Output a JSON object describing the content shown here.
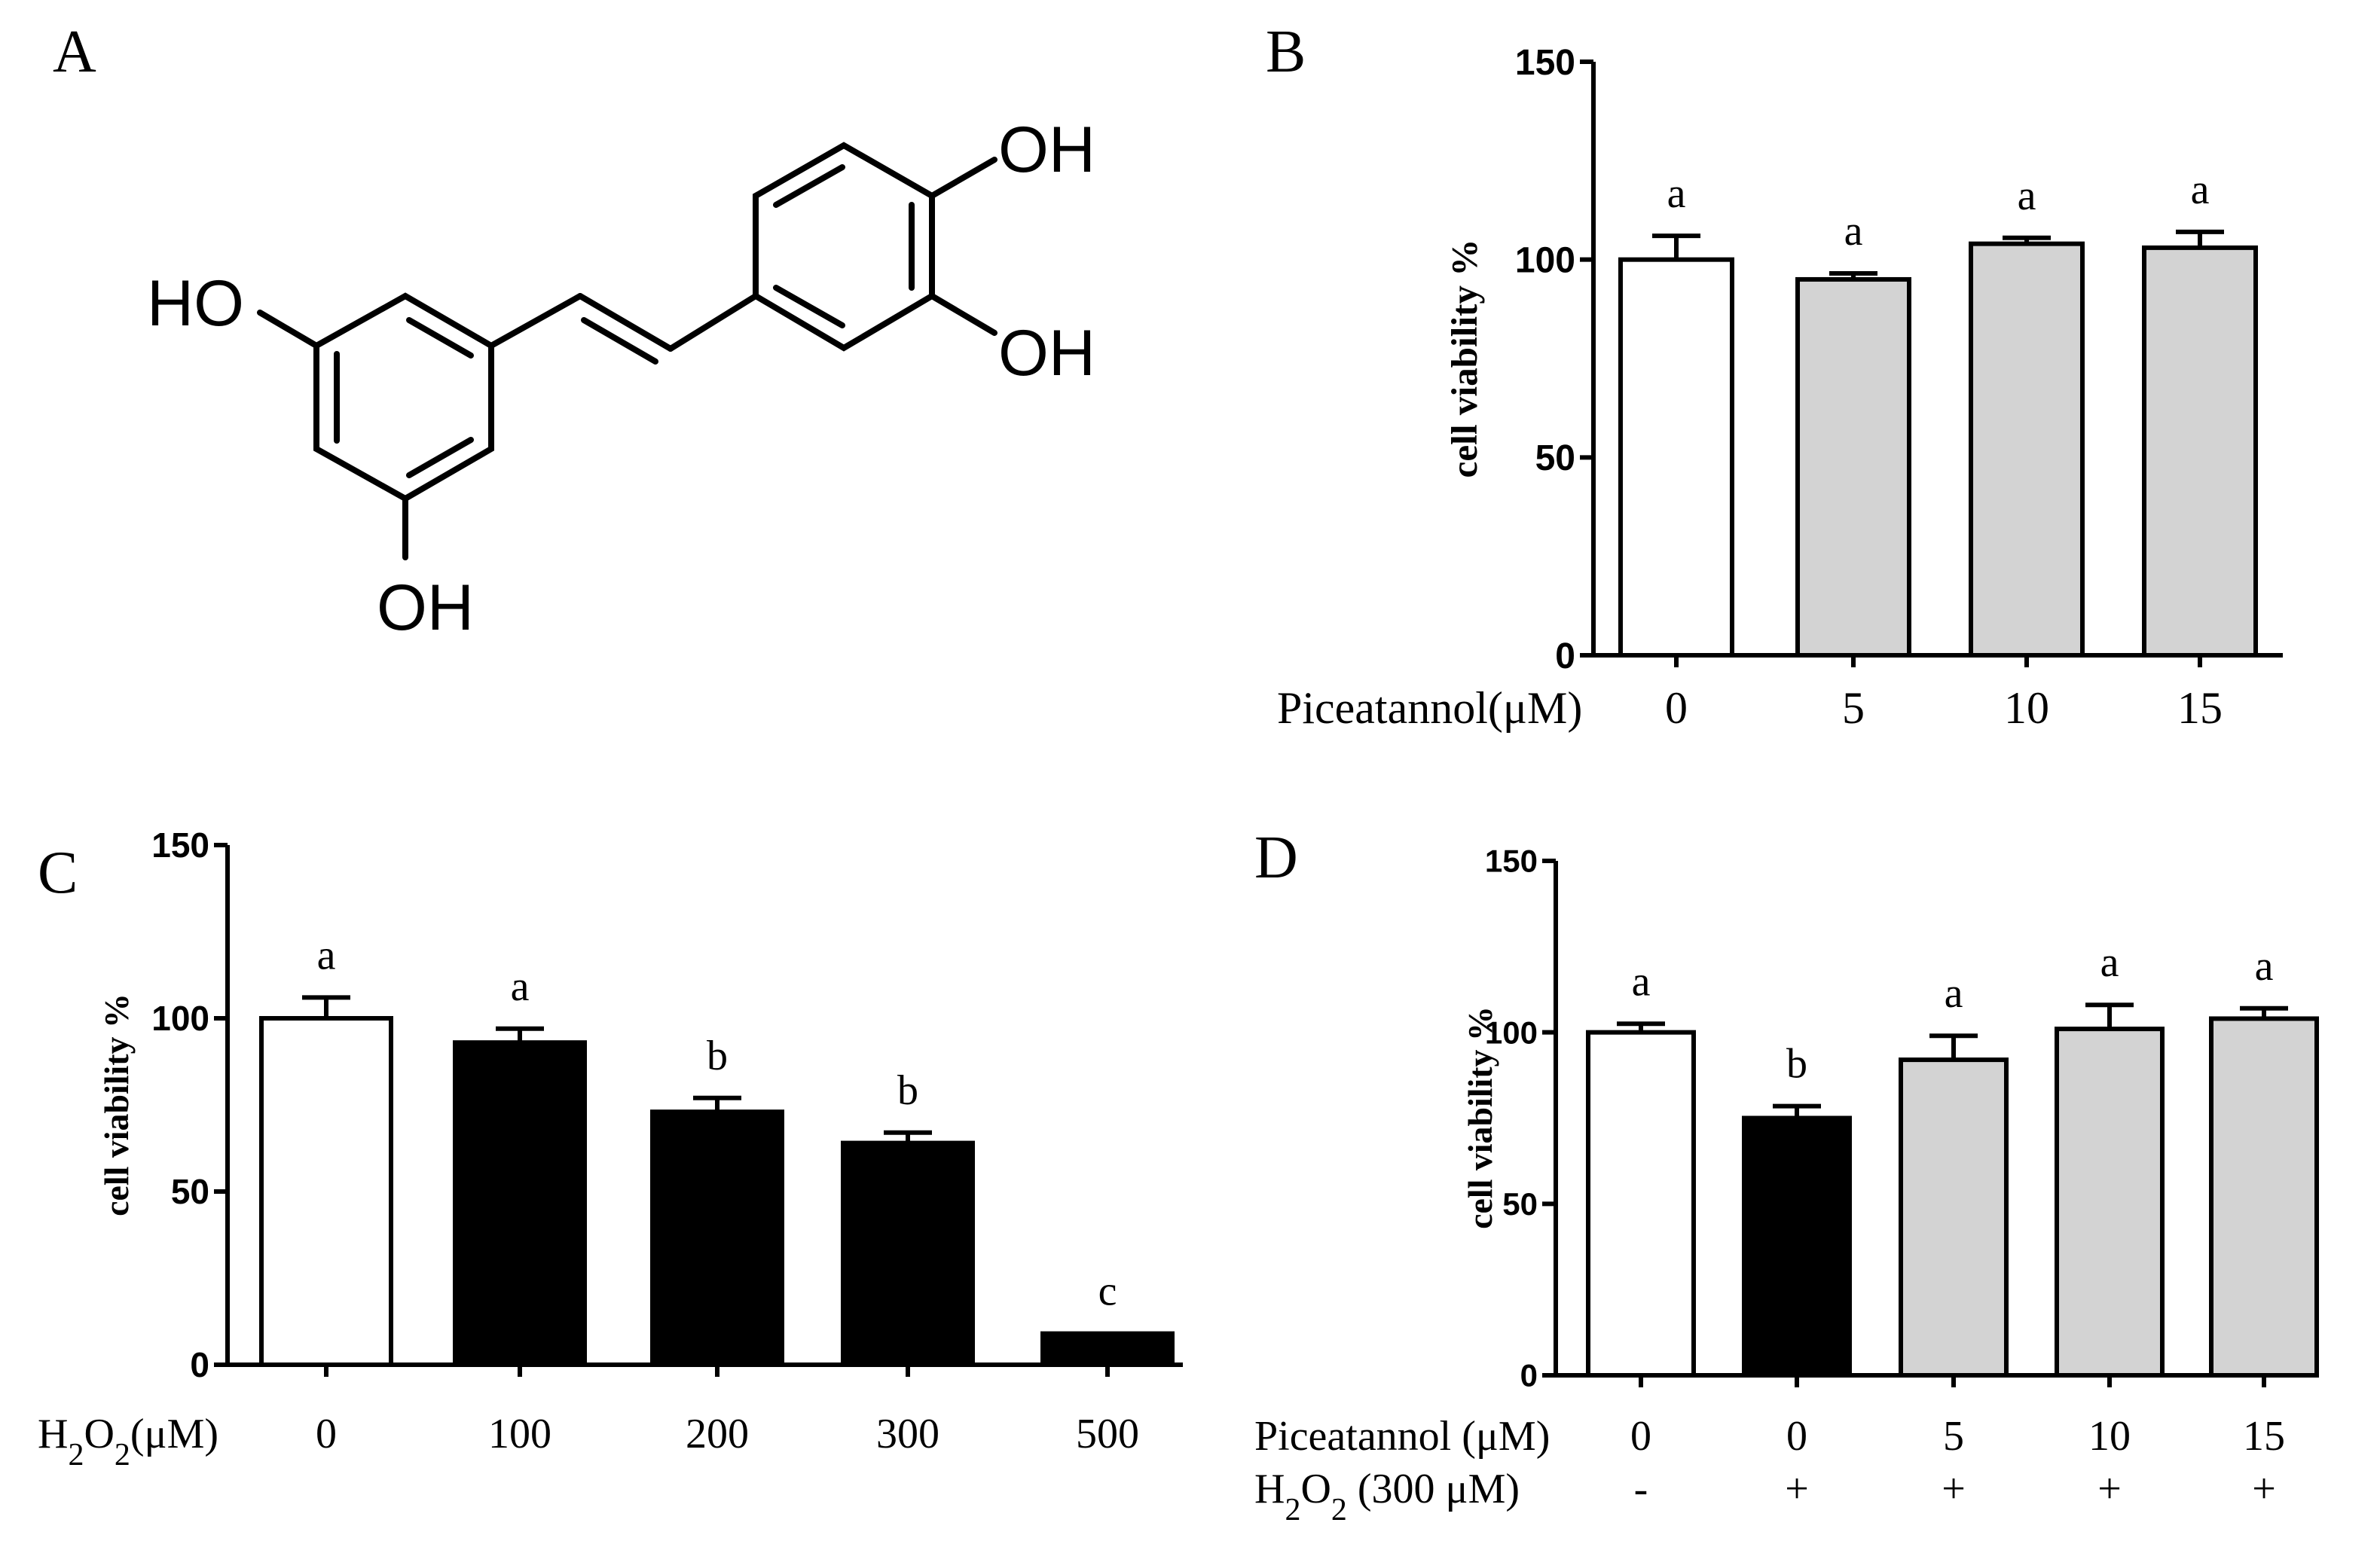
{
  "panels": {
    "A": {
      "label": "A"
    },
    "B": {
      "label": "B"
    },
    "C": {
      "label": "C"
    },
    "D": {
      "label": "D"
    }
  },
  "molecule": {
    "labels": [
      "OH",
      "OH",
      "HO",
      "OH"
    ]
  },
  "colors": {
    "white_bar": "#ffffff",
    "gray_bar": "#d3d3d3",
    "black_bar": "#000000",
    "axis": "#000000"
  },
  "chart_data": [
    {
      "panel": "B",
      "type": "bar",
      "ylabel": "cell viability %",
      "ylim": [
        0,
        150
      ],
      "yticks": [
        0,
        50,
        100,
        150
      ],
      "row_labels": [
        "Piceatannol(μM)"
      ],
      "categories": [
        "0",
        "5",
        "10",
        "15"
      ],
      "values": [
        100,
        95,
        104,
        103
      ],
      "errors": [
        6,
        1.5,
        1.5,
        4
      ],
      "fills": [
        "white",
        "gray",
        "gray",
        "gray"
      ],
      "annotations": [
        "a",
        "a",
        "a",
        "a"
      ]
    },
    {
      "panel": "C",
      "type": "bar",
      "ylabel": "cell viability %",
      "ylim": [
        0,
        150
      ],
      "yticks": [
        0,
        50,
        100,
        150
      ],
      "row_labels": [
        "H2O2(μM)"
      ],
      "categories": [
        "0",
        "100",
        "200",
        "300",
        "500"
      ],
      "values": [
        100,
        93,
        73,
        64,
        9
      ],
      "errors": [
        6,
        4,
        4,
        3,
        0
      ],
      "fills": [
        "white",
        "black",
        "black",
        "black",
        "black"
      ],
      "annotations": [
        "a",
        "a",
        "b",
        "b",
        "c"
      ]
    },
    {
      "panel": "D",
      "type": "bar",
      "ylabel": "cell viability %",
      "ylim": [
        0,
        150
      ],
      "yticks": [
        0,
        50,
        100,
        150
      ],
      "row_labels": [
        "Piceatannol  (μM)",
        "H2O2 (300 μM)"
      ],
      "categories": [
        "0",
        "0",
        "5",
        "10",
        "15"
      ],
      "categories_row2": [
        "-",
        "+",
        "+",
        "+",
        "+"
      ],
      "values": [
        100,
        75,
        92,
        101,
        104
      ],
      "errors": [
        2.5,
        3.5,
        7,
        7,
        3
      ],
      "fills": [
        "white",
        "black",
        "gray",
        "gray",
        "gray"
      ],
      "annotations": [
        "a",
        "b",
        "a",
        "a",
        "a"
      ]
    }
  ]
}
